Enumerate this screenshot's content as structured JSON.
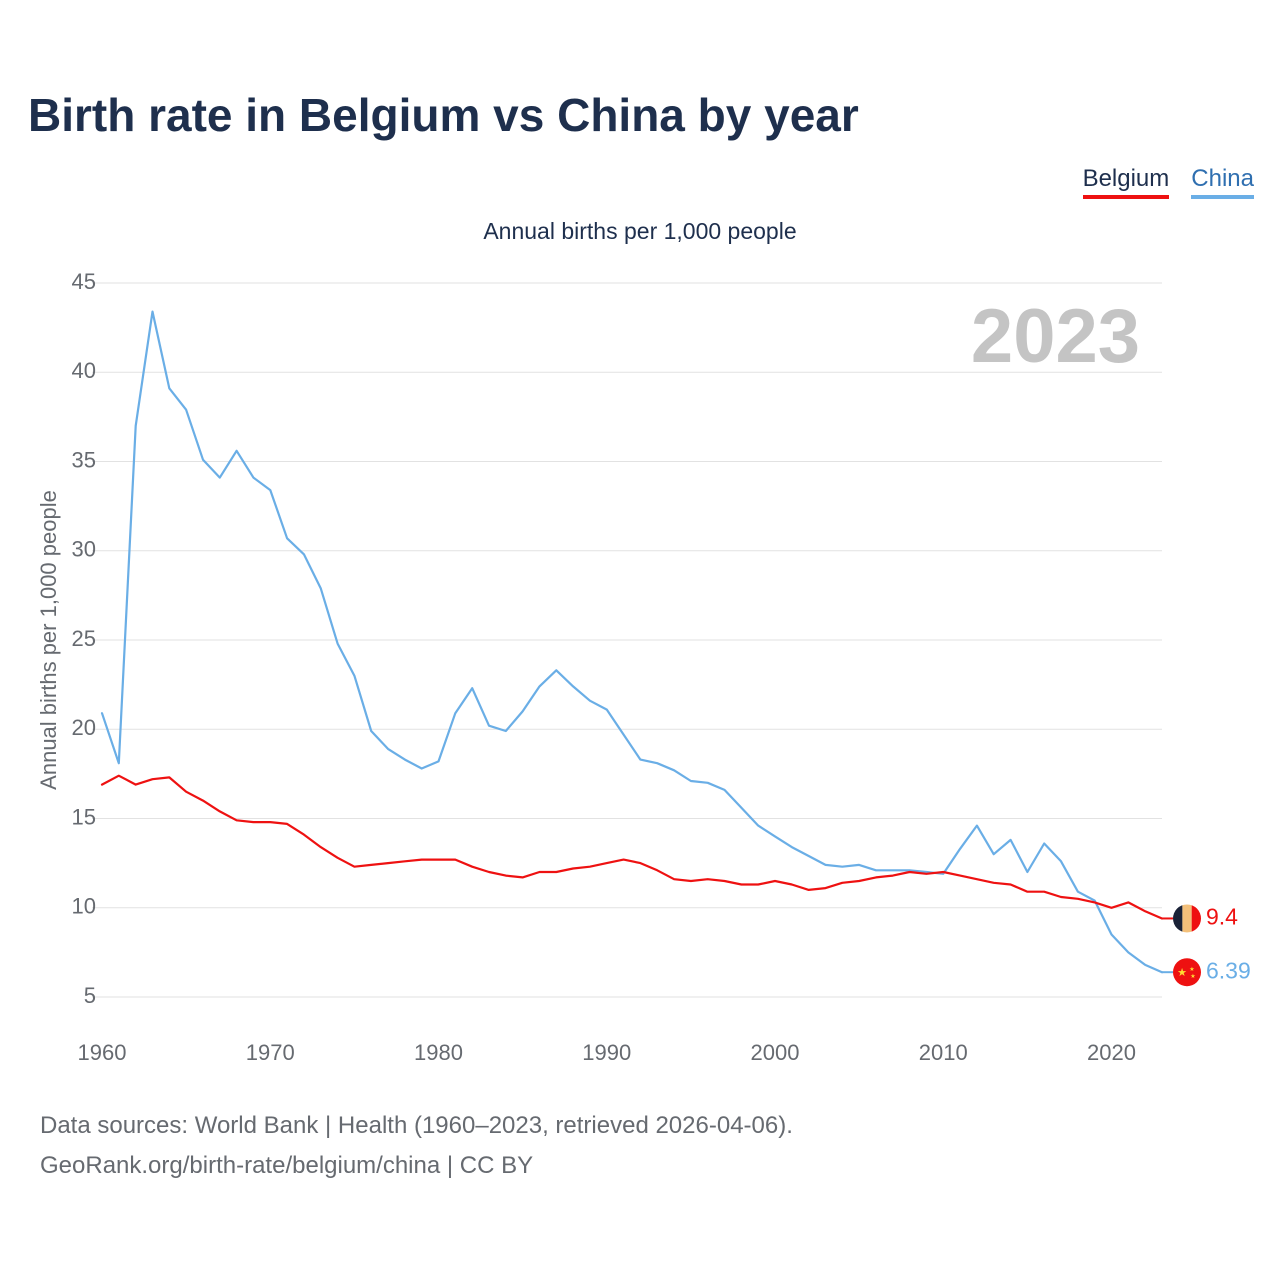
{
  "header": {
    "title": "Birth rate in Belgium vs China by year",
    "subtitle": "Annual births per 1,000 people"
  },
  "legend": [
    {
      "label": "Belgium",
      "color": "#ee1111"
    },
    {
      "label": "China",
      "color": "#6aaee6"
    }
  ],
  "footer": {
    "line1": "Data sources: World Bank | Health (1960–2023, retrieved 2026-04-06).",
    "line2": "GeoRank.org/birth-rate/belgium/china | CC BY"
  },
  "chart_data": {
    "type": "line",
    "title": "Birth rate in Belgium vs China by year",
    "subtitle": "Annual births per 1,000 people",
    "xlabel": "",
    "ylabel": "Annual births per 1,000 people",
    "year_marker": "2023",
    "xlim": [
      1960,
      2023
    ],
    "ylim": [
      5,
      45
    ],
    "x_ticks": [
      1960,
      1970,
      1980,
      1990,
      2000,
      2010,
      2020
    ],
    "y_ticks": [
      5,
      10,
      15,
      20,
      25,
      30,
      35,
      40,
      45
    ],
    "grid": true,
    "x": [
      1960,
      1961,
      1962,
      1963,
      1964,
      1965,
      1966,
      1967,
      1968,
      1969,
      1970,
      1971,
      1972,
      1973,
      1974,
      1975,
      1976,
      1977,
      1978,
      1979,
      1980,
      1981,
      1982,
      1983,
      1984,
      1985,
      1986,
      1987,
      1988,
      1989,
      1990,
      1991,
      1992,
      1993,
      1994,
      1995,
      1996,
      1997,
      1998,
      1999,
      2000,
      2001,
      2002,
      2003,
      2004,
      2005,
      2006,
      2007,
      2008,
      2009,
      2010,
      2011,
      2012,
      2013,
      2014,
      2015,
      2016,
      2017,
      2018,
      2019,
      2020,
      2021,
      2022,
      2023
    ],
    "series": [
      {
        "name": "Belgium",
        "color": "#ee1111",
        "end_label": "9.4",
        "values": [
          16.9,
          17.4,
          16.9,
          17.2,
          17.3,
          16.5,
          16.0,
          15.4,
          14.9,
          14.8,
          14.8,
          14.7,
          14.1,
          13.4,
          12.8,
          12.3,
          12.4,
          12.5,
          12.6,
          12.7,
          12.7,
          12.7,
          12.3,
          12.0,
          11.8,
          11.7,
          12.0,
          12.0,
          12.2,
          12.3,
          12.5,
          12.7,
          12.5,
          12.1,
          11.6,
          11.5,
          11.6,
          11.5,
          11.3,
          11.3,
          11.5,
          11.3,
          11.0,
          11.1,
          11.4,
          11.5,
          11.7,
          11.8,
          12.0,
          11.9,
          12.0,
          11.8,
          11.6,
          11.4,
          11.3,
          10.9,
          10.9,
          10.6,
          10.5,
          10.3,
          10.0,
          10.3,
          9.8,
          9.4
        ]
      },
      {
        "name": "China",
        "color": "#6aaee6",
        "end_label": "6.39",
        "values": [
          20.9,
          18.1,
          37.0,
          43.4,
          39.1,
          37.9,
          35.1,
          34.1,
          35.6,
          34.1,
          33.4,
          30.7,
          29.8,
          27.9,
          24.8,
          23.0,
          19.9,
          18.9,
          18.3,
          17.8,
          18.2,
          20.9,
          22.3,
          20.2,
          19.9,
          21.0,
          22.4,
          23.3,
          22.4,
          21.6,
          21.1,
          19.7,
          18.3,
          18.1,
          17.7,
          17.1,
          17.0,
          16.6,
          15.6,
          14.6,
          14.0,
          13.4,
          12.9,
          12.4,
          12.3,
          12.4,
          12.1,
          12.1,
          12.1,
          12.0,
          11.9,
          13.3,
          14.6,
          13.0,
          13.8,
          12.0,
          13.6,
          12.6,
          10.9,
          10.4,
          8.5,
          7.5,
          6.8,
          6.39
        ]
      }
    ]
  }
}
